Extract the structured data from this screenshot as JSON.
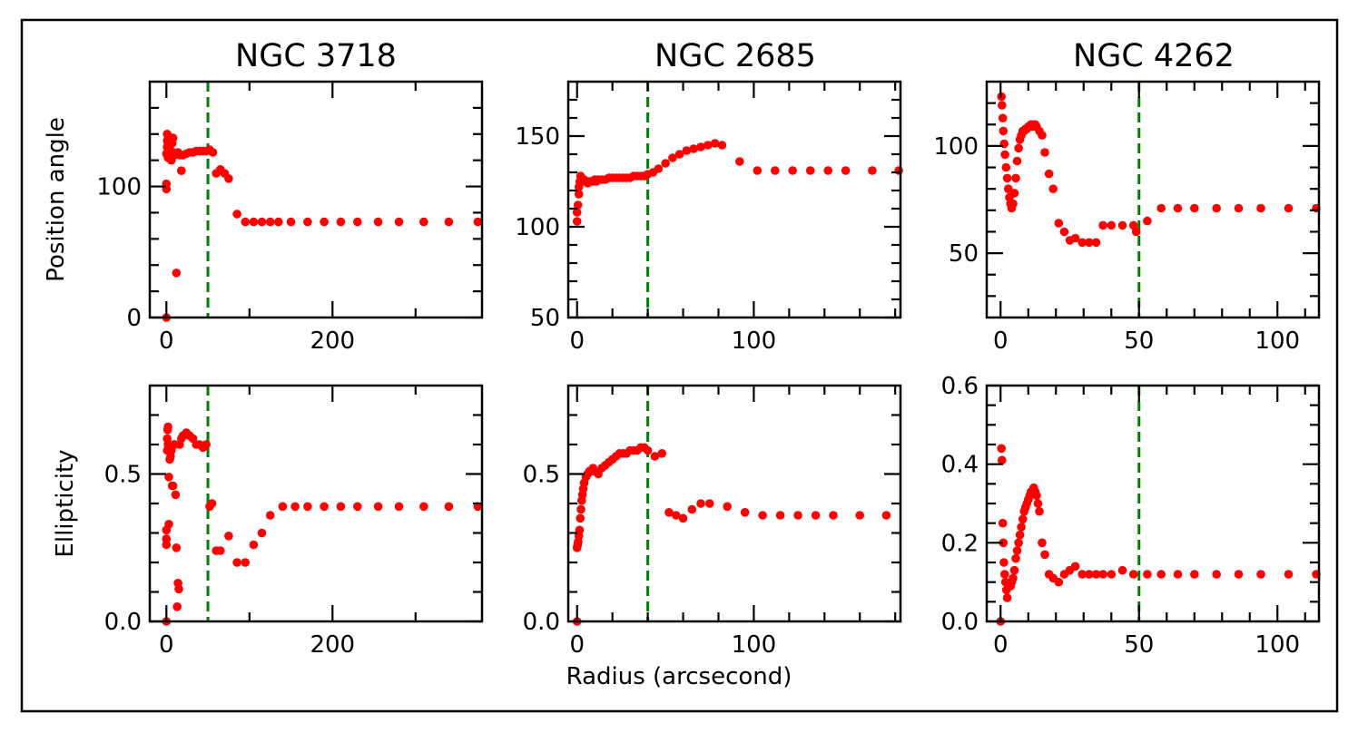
{
  "figure": {
    "xlabel": "Radius (arcsecond)",
    "ylabel_row1": "Position angle",
    "ylabel_row2": "Ellipticity"
  },
  "colors": {
    "points": "#ff0000",
    "guide_line": "#008000",
    "axes": "#000000"
  },
  "chart_data": [
    {
      "id": "ngc3718-pa",
      "type": "scatter",
      "title": "NGC 3718",
      "xlabel": "",
      "ylabel": "Position angle",
      "xlim": [
        -20,
        380
      ],
      "ylim": [
        0,
        180
      ],
      "xticks": [
        0,
        200
      ],
      "yticks": [
        0,
        100
      ],
      "xminor": [
        100,
        300
      ],
      "yminor": [
        20,
        40,
        60,
        80,
        120,
        140,
        160
      ],
      "vline": 50,
      "x": [
        0,
        0,
        0,
        0,
        1,
        1,
        1,
        2,
        2,
        3,
        3,
        4,
        4,
        5,
        6,
        7,
        8,
        9,
        10,
        12,
        14,
        16,
        18,
        20,
        24,
        28,
        32,
        36,
        40,
        44,
        48,
        52,
        56,
        60,
        65,
        70,
        75,
        85,
        95,
        105,
        115,
        125,
        135,
        150,
        170,
        190,
        210,
        230,
        255,
        280,
        310,
        340,
        375
      ],
      "y": [
        0,
        98,
        102,
        125,
        130,
        135,
        140,
        132,
        122,
        138,
        128,
        131,
        125,
        134,
        120,
        133,
        137,
        126,
        124,
        34,
        126,
        124,
        112,
        124,
        125,
        126,
        126,
        127,
        127,
        127,
        127,
        128,
        126,
        110,
        113,
        110,
        106,
        79,
        73,
        73,
        73,
        73,
        73,
        73,
        73,
        73,
        73,
        73,
        73,
        73,
        73,
        73,
        73
      ]
    },
    {
      "id": "ngc2685-pa",
      "type": "scatter",
      "title": "NGC 2685",
      "xlabel": "",
      "ylabel": "",
      "xlim": [
        -5,
        183
      ],
      "ylim": [
        50,
        180
      ],
      "xticks": [
        0,
        100
      ],
      "yticks": [
        50,
        100,
        150
      ],
      "xminor": [
        20,
        40,
        60,
        80,
        120,
        140,
        160,
        180
      ],
      "yminor": [
        60,
        70,
        80,
        90,
        110,
        120,
        130,
        140,
        160,
        170
      ],
      "vline": 40,
      "x": [
        0,
        0,
        0.5,
        1,
        1,
        1.5,
        2,
        2.5,
        3,
        4,
        5,
        6,
        7,
        8,
        9,
        10,
        11,
        12,
        14,
        16,
        18,
        20,
        22,
        24,
        26,
        28,
        30,
        32,
        34,
        36,
        38,
        40,
        43,
        46,
        50,
        54,
        58,
        62,
        66,
        70,
        74,
        78,
        82,
        92,
        102,
        112,
        122,
        132,
        142,
        152,
        167,
        182
      ],
      "y": [
        103,
        108,
        112,
        118,
        122,
        125,
        128,
        126,
        125,
        126,
        125,
        124,
        125,
        125,
        125,
        126,
        125,
        126,
        126,
        126,
        127,
        127,
        127,
        127,
        127,
        127,
        127,
        128,
        128,
        128,
        128,
        129,
        130,
        132,
        135,
        138,
        140,
        142,
        143,
        144,
        145,
        146,
        145,
        136,
        131,
        131,
        131,
        131,
        131,
        131,
        131,
        131
      ]
    },
    {
      "id": "ngc4262-pa",
      "type": "scatter",
      "title": "NGC 4262",
      "xlabel": "",
      "ylabel": "",
      "xlim": [
        -5,
        115
      ],
      "ylim": [
        20,
        130
      ],
      "xticks": [
        0,
        50,
        100
      ],
      "yticks": [
        50,
        100
      ],
      "xminor": [
        10,
        20,
        30,
        40,
        60,
        70,
        80,
        90,
        110
      ],
      "yminor": [
        30,
        40,
        60,
        70,
        80,
        90,
        110,
        120
      ],
      "vline": 50,
      "x": [
        0.3,
        0.5,
        0.8,
        1.0,
        1.3,
        1.6,
        2.0,
        2.4,
        2.8,
        3.2,
        3.6,
        4.0,
        4.5,
        5.0,
        5.5,
        6.0,
        6.5,
        7.0,
        7.5,
        8.0,
        8.5,
        9.0,
        9.5,
        10.0,
        10.5,
        11.0,
        11.5,
        12.0,
        12.5,
        13.0,
        14.0,
        15.0,
        16.0,
        17.5,
        19.0,
        21.0,
        23.0,
        25.0,
        27.0,
        29.5,
        32.0,
        34.5,
        37.0,
        40.0,
        44.0,
        48.0,
        49.0,
        53.0,
        58.0,
        64.0,
        70.0,
        78.0,
        86.0,
        94.0,
        104.0,
        114.0
      ],
      "y": [
        123,
        119,
        113,
        107,
        101,
        96,
        90,
        85,
        80,
        76,
        73,
        71,
        73,
        78,
        85,
        93,
        99,
        103,
        105,
        107,
        107,
        108,
        108,
        109,
        109,
        110,
        109,
        110,
        110,
        109,
        107,
        105,
        97,
        87,
        80,
        64,
        60,
        56,
        57,
        55,
        55,
        55,
        63,
        63,
        63,
        63,
        60,
        65,
        71,
        71,
        71,
        71,
        71,
        71,
        71,
        71
      ]
    },
    {
      "id": "ngc3718-ell",
      "type": "scatter",
      "title": "",
      "xlabel": "",
      "ylabel": "Ellipticity",
      "xlim": [
        -20,
        380
      ],
      "ylim": [
        0,
        0.8
      ],
      "xticks": [
        0,
        200
      ],
      "yticks": [
        0.0,
        0.5
      ],
      "xminor": [
        100,
        300
      ],
      "yminor": [
        0.1,
        0.2,
        0.3,
        0.4,
        0.6,
        0.7
      ],
      "vline": 50,
      "x": [
        0,
        0,
        0,
        0,
        1,
        1,
        1.5,
        2,
        2,
        3,
        3,
        4,
        5,
        6,
        7,
        8,
        9,
        10,
        11,
        12,
        13,
        14,
        15,
        16,
        18,
        20,
        24,
        28,
        32,
        36,
        40,
        44,
        48,
        52,
        55,
        60,
        65,
        75,
        85,
        95,
        105,
        115,
        125,
        140,
        155,
        170,
        190,
        210,
        230,
        255,
        280,
        310,
        340,
        375
      ],
      "y": [
        0.0,
        0.26,
        0.28,
        0.31,
        0.58,
        0.62,
        0.65,
        0.66,
        0.6,
        0.33,
        0.49,
        0.55,
        0.56,
        0.58,
        0.46,
        0.46,
        0.6,
        0.6,
        0.43,
        0.25,
        0.05,
        0.13,
        0.11,
        0.6,
        0.62,
        0.63,
        0.64,
        0.63,
        0.62,
        0.6,
        0.6,
        0.59,
        0.6,
        0.39,
        0.4,
        0.24,
        0.24,
        0.29,
        0.2,
        0.2,
        0.26,
        0.3,
        0.36,
        0.39,
        0.39,
        0.39,
        0.39,
        0.39,
        0.39,
        0.39,
        0.39,
        0.39,
        0.39,
        0.39
      ]
    },
    {
      "id": "ngc2685-ell",
      "type": "scatter",
      "title": "",
      "xlabel": "",
      "ylabel": "",
      "xlim": [
        -5,
        183
      ],
      "ylim": [
        0,
        0.8
      ],
      "xticks": [
        0,
        100
      ],
      "yticks": [
        0.0,
        0.5
      ],
      "xminor": [
        20,
        40,
        60,
        80,
        120,
        140,
        160,
        180
      ],
      "yminor": [
        0.1,
        0.2,
        0.3,
        0.4,
        0.6,
        0.7
      ],
      "vline": 40,
      "x": [
        0,
        0,
        0.3,
        0.6,
        1.0,
        1.4,
        1.8,
        2.2,
        2.6,
        3.0,
        3.5,
        4.0,
        5.0,
        6.0,
        7.0,
        8.0,
        9.0,
        10.0,
        12.0,
        14.0,
        16.0,
        18.0,
        20.0,
        22.0,
        24.0,
        26.0,
        28.0,
        30.0,
        32.0,
        34.0,
        36.0,
        38.0,
        40.0,
        44.0,
        48.0,
        52.0,
        56.0,
        60.0,
        65.0,
        70.0,
        75.0,
        85.0,
        95.0,
        105.0,
        115.0,
        125.0,
        135.0,
        145.0,
        160.0,
        175.0
      ],
      "y": [
        0.0,
        0.25,
        0.26,
        0.27,
        0.29,
        0.31,
        0.35,
        0.38,
        0.41,
        0.43,
        0.45,
        0.47,
        0.49,
        0.5,
        0.51,
        0.51,
        0.52,
        0.51,
        0.5,
        0.52,
        0.53,
        0.54,
        0.55,
        0.56,
        0.57,
        0.57,
        0.57,
        0.58,
        0.58,
        0.58,
        0.59,
        0.59,
        0.58,
        0.56,
        0.57,
        0.37,
        0.36,
        0.35,
        0.38,
        0.4,
        0.4,
        0.39,
        0.37,
        0.36,
        0.36,
        0.36,
        0.36,
        0.36,
        0.36,
        0.36
      ]
    },
    {
      "id": "ngc4262-ell",
      "type": "scatter",
      "title": "",
      "xlabel": "",
      "ylabel": "",
      "xlim": [
        -5,
        115
      ],
      "ylim": [
        0,
        0.6
      ],
      "xticks": [
        0,
        50,
        100
      ],
      "yticks": [
        0.0,
        0.2,
        0.4,
        0.6
      ],
      "xminor": [
        10,
        20,
        30,
        40,
        60,
        70,
        80,
        90,
        110
      ],
      "yminor": [
        0.05,
        0.1,
        0.15,
        0.25,
        0.3,
        0.35,
        0.45,
        0.5,
        0.55
      ],
      "vline": 50,
      "x": [
        0.0,
        0.3,
        0.5,
        0.8,
        1.0,
        1.2,
        1.5,
        1.8,
        2.1,
        2.4,
        2.8,
        3.2,
        3.6,
        4.0,
        4.5,
        5.0,
        5.5,
        6.0,
        6.5,
        7.0,
        7.5,
        8.0,
        8.5,
        9.0,
        9.5,
        10.0,
        10.5,
        11.0,
        11.5,
        12.0,
        12.5,
        13.0,
        13.5,
        14.0,
        15.0,
        16.0,
        17.5,
        19.0,
        21.0,
        23.0,
        25.0,
        27.0,
        29.5,
        32.0,
        34.5,
        37.0,
        40.0,
        44.0,
        48.0,
        53.0,
        58.0,
        64.0,
        70.0,
        78.0,
        86.0,
        94.0,
        104.0,
        114.0
      ],
      "y": [
        0.0,
        0.44,
        0.41,
        0.25,
        0.2,
        0.15,
        0.12,
        0.1,
        0.08,
        0.06,
        0.09,
        0.09,
        0.09,
        0.1,
        0.11,
        0.13,
        0.16,
        0.18,
        0.2,
        0.22,
        0.24,
        0.26,
        0.28,
        0.29,
        0.3,
        0.31,
        0.32,
        0.33,
        0.33,
        0.34,
        0.33,
        0.32,
        0.3,
        0.28,
        0.2,
        0.17,
        0.12,
        0.11,
        0.1,
        0.12,
        0.13,
        0.14,
        0.12,
        0.12,
        0.12,
        0.12,
        0.12,
        0.13,
        0.12,
        0.12,
        0.12,
        0.12,
        0.12,
        0.12,
        0.12,
        0.12,
        0.12,
        0.12
      ]
    }
  ]
}
